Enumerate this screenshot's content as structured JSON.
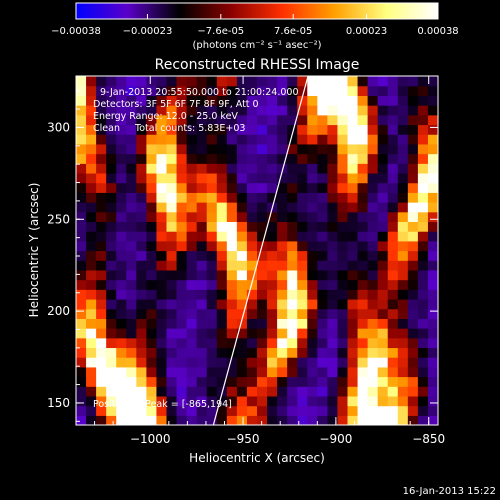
{
  "colorbar": {
    "ticks": [
      "-0.00038",
      "-0.00023",
      "-7.6e-05",
      "7.6e-05",
      "0.00023",
      "0.00038"
    ],
    "unit_label": "(photons cm⁻² s⁻¹ asec⁻²)",
    "range": [
      -0.00038,
      0.00038
    ],
    "colors": [
      "#0000ff",
      "#5a00c8",
      "#000000",
      "#8b0000",
      "#ff3000",
      "#ffa000",
      "#ffff80",
      "#ffffff"
    ]
  },
  "chart_data": {
    "type": "heatmap",
    "title": "Reconstructed RHESSI Image",
    "xlabel": "Heliocentric X (arcsec)",
    "ylabel": "Heliocentric Y (arcsec)",
    "xlim": [
      -1040,
      -845
    ],
    "ylim": [
      138,
      328
    ],
    "xticks": [
      -1000,
      -950,
      -900,
      -850
    ],
    "yticks": [
      150,
      200,
      250,
      300
    ],
    "xtick_labels": [
      "−1000",
      "−950",
      "−900",
      "−850"
    ],
    "ytick_labels": [
      "150",
      "200",
      "250",
      "300"
    ],
    "grid": false,
    "annotations": {
      "line1": "9-Jan-2013 20:55:50.000 to 21:00:24.000",
      "line2": "Detectors: 3F 5F 6F 7F 8F 9F, Att 0",
      "line3": "Energy Range: 12.0 - 25.0 keV",
      "line4": "Clean     Total counts: 5.83E+03",
      "peak": "Position of Peak = [-865,194]"
    },
    "peak_position": [
      -865,
      194
    ],
    "limb_line": {
      "x_bottom": -966,
      "y_bottom": 138,
      "x_top": -915,
      "y_top": 328
    },
    "stripes_x": [
      -1030,
      -995,
      -958,
      -925,
      -890,
      -860
    ],
    "value_range": [
      -0.00038,
      0.00038
    ]
  },
  "timestamp": "16-Jan-2013 15:22"
}
